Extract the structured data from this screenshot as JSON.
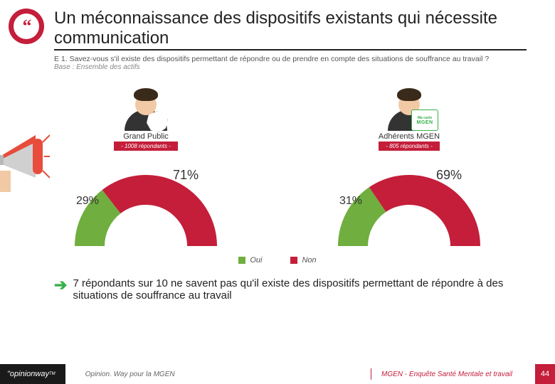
{
  "title": "Un méconnaissance des dispositifs existants qui nécessite communication",
  "question": "E 1. Savez-vous s'il existe des dispositifs permettant de répondre ou de prendre en compte des situations de souffrance au travail ?",
  "base": "Base : Ensemble des actifs",
  "legend": {
    "yes": "Oui",
    "no": "Non"
  },
  "colors": {
    "yes": "#6fae3f",
    "no": "#c41e3a",
    "brand": "#c41e3a",
    "accent_green": "#36b14a",
    "text": "#222222",
    "muted": "#888888",
    "bg": "#ffffff"
  },
  "panels": [
    {
      "id": "grand-public",
      "label": "Grand Public",
      "respondents": "- 1008 répondants -",
      "yes_pct": 29,
      "no_pct": 71,
      "badge": null
    },
    {
      "id": "adherents-mgen",
      "label": "Adhérents MGEN",
      "respondents": "- 805 répondants -",
      "yes_pct": 31,
      "no_pct": 69,
      "badge": {
        "line1": "Ma carte",
        "line2": "MGEN"
      }
    }
  ],
  "gauge": {
    "inner_ratio": 0.58,
    "start_angle_deg": 180,
    "sweep_deg": 180,
    "label_fontsize_pt": 14,
    "track_bg": "none"
  },
  "conclusion": "7 répondants sur 10 ne savent pas qu'il existe des dispositifs permettant de répondre à des situations de souffrance au travail",
  "footer": {
    "logo": "\"opinionway",
    "left": "Opinion. Way pour la MGEN",
    "right": "MGEN - Enquête Santé Mentale et travail",
    "page": "44"
  },
  "icons": {
    "header": "quote-bubble-icon",
    "megaphone": "megaphone-icon",
    "arrow": "right-arrow-icon"
  }
}
